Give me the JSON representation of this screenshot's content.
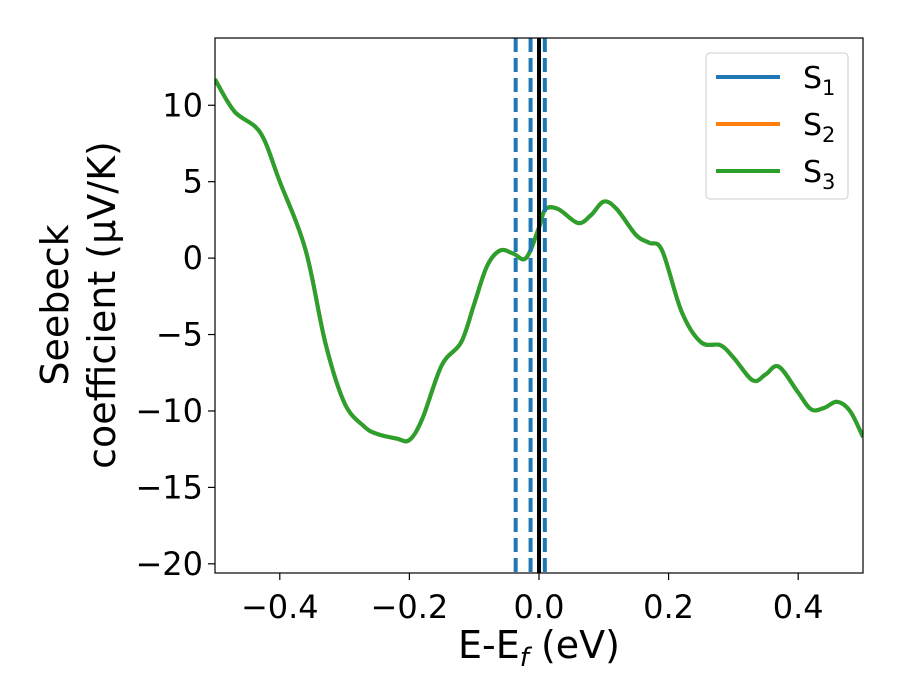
{
  "chart_data": {
    "type": "line",
    "xlabel": "E-E_f (eV)",
    "ylabel_line1": "Seebeck",
    "ylabel_line2": "coefficient  (μV/K)",
    "xlim": [
      -0.5,
      0.5
    ],
    "ylim": [
      -20.6,
      14.4
    ],
    "xticks": [
      -0.4,
      -0.2,
      0.0,
      0.2,
      0.4
    ],
    "xtick_labels": [
      "−0.4",
      "−0.2",
      "0.0",
      "0.2",
      "0.4"
    ],
    "yticks": [
      10,
      5,
      0,
      -5,
      -10,
      -15,
      -20
    ],
    "ytick_labels": [
      "10",
      "5",
      "0",
      "−5",
      "−10",
      "−15",
      "−20"
    ],
    "grid": false,
    "legend_position": "top-right",
    "series": [
      {
        "name": "S1",
        "color": "#1f77b4",
        "x": [
          -0.5,
          -0.47,
          -0.43,
          -0.4,
          -0.36,
          -0.33,
          -0.3,
          -0.27,
          -0.25,
          -0.22,
          -0.2,
          -0.18,
          -0.15,
          -0.12,
          -0.1,
          -0.08,
          -0.06,
          -0.04,
          -0.02,
          0.0,
          0.01,
          0.03,
          0.06,
          0.08,
          0.1,
          0.12,
          0.15,
          0.17,
          0.19,
          0.22,
          0.25,
          0.28,
          0.3,
          0.33,
          0.35,
          0.37,
          0.4,
          0.42,
          0.44,
          0.46,
          0.48,
          0.5
        ],
        "y": [
          11.7,
          9.6,
          8.2,
          5.0,
          0.5,
          -5.5,
          -9.5,
          -11.0,
          -11.5,
          -11.8,
          -11.9,
          -10.5,
          -7.0,
          -5.5,
          -3.0,
          -0.5,
          0.5,
          0.3,
          0.0,
          2.0,
          3.2,
          3.2,
          2.3,
          2.8,
          3.7,
          3.2,
          1.5,
          1.0,
          0.5,
          -3.5,
          -5.5,
          -5.7,
          -6.5,
          -8.0,
          -7.6,
          -7.1,
          -8.8,
          -9.9,
          -9.8,
          -9.4,
          -10.0,
          -11.7
        ]
      },
      {
        "name": "S2",
        "color": "#ff7f0e",
        "x": [
          -0.5,
          -0.47,
          -0.43,
          -0.4,
          -0.36,
          -0.33,
          -0.3,
          -0.27,
          -0.25,
          -0.22,
          -0.2,
          -0.18,
          -0.15,
          -0.12,
          -0.1,
          -0.08,
          -0.06,
          -0.04,
          -0.02,
          0.0,
          0.01,
          0.03,
          0.06,
          0.08,
          0.1,
          0.12,
          0.15,
          0.17,
          0.19,
          0.22,
          0.25,
          0.28,
          0.3,
          0.33,
          0.35,
          0.37,
          0.4,
          0.42,
          0.44,
          0.46,
          0.48,
          0.5
        ],
        "y": [
          11.7,
          9.6,
          8.2,
          5.0,
          0.5,
          -5.5,
          -9.5,
          -11.0,
          -11.5,
          -11.8,
          -11.9,
          -10.5,
          -7.0,
          -5.5,
          -3.0,
          -0.5,
          0.5,
          0.3,
          0.0,
          2.0,
          3.2,
          3.2,
          2.3,
          2.8,
          3.7,
          3.2,
          1.5,
          1.0,
          0.5,
          -3.5,
          -5.5,
          -5.7,
          -6.5,
          -8.0,
          -7.6,
          -7.1,
          -8.8,
          -9.9,
          -9.8,
          -9.4,
          -10.0,
          -11.7
        ]
      },
      {
        "name": "S3",
        "color": "#2ca02c",
        "x": [
          -0.5,
          -0.47,
          -0.43,
          -0.4,
          -0.36,
          -0.33,
          -0.3,
          -0.27,
          -0.25,
          -0.22,
          -0.2,
          -0.18,
          -0.15,
          -0.12,
          -0.1,
          -0.08,
          -0.06,
          -0.04,
          -0.02,
          0.0,
          0.01,
          0.03,
          0.06,
          0.08,
          0.1,
          0.12,
          0.15,
          0.17,
          0.19,
          0.22,
          0.25,
          0.28,
          0.3,
          0.33,
          0.35,
          0.37,
          0.4,
          0.42,
          0.44,
          0.46,
          0.48,
          0.5
        ],
        "y": [
          11.7,
          9.6,
          8.2,
          5.0,
          0.5,
          -5.5,
          -9.5,
          -11.0,
          -11.5,
          -11.8,
          -11.9,
          -10.5,
          -7.0,
          -5.5,
          -3.0,
          -0.5,
          0.5,
          0.3,
          0.0,
          2.0,
          3.2,
          3.2,
          2.3,
          2.8,
          3.7,
          3.2,
          1.5,
          1.0,
          0.5,
          -3.5,
          -5.5,
          -5.7,
          -6.5,
          -8.0,
          -7.6,
          -7.1,
          -8.8,
          -9.9,
          -9.8,
          -9.4,
          -10.0,
          -11.7
        ]
      }
    ],
    "legend_labels": [
      {
        "base": "S",
        "sub": "1"
      },
      {
        "base": "S",
        "sub": "2"
      },
      {
        "base": "S",
        "sub": "3"
      }
    ],
    "vlines": [
      {
        "x": -0.036,
        "style": "dashed",
        "color": "#1f77b4"
      },
      {
        "x": -0.013,
        "style": "dashed",
        "color": "#1f77b4"
      },
      {
        "x": 0.0,
        "style": "solid",
        "color": "#000000"
      },
      {
        "x": 0.009,
        "style": "dashed",
        "color": "#1f77b4"
      }
    ]
  }
}
